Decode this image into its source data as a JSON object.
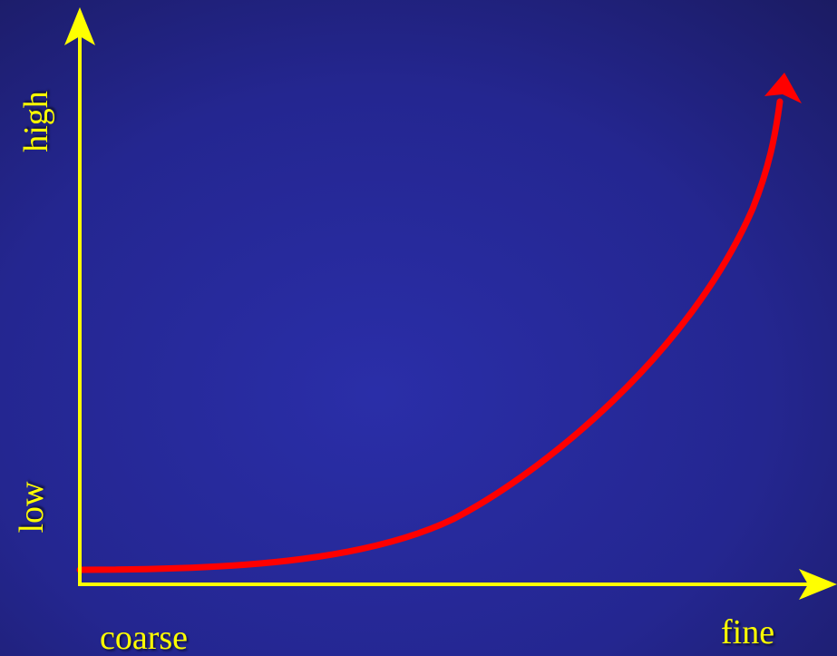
{
  "colors": {
    "background_light": "#2A2EA8",
    "background_dark": "#1A1A5E",
    "axis": "#FFFF00",
    "curve": "#FF0000",
    "label": "#FFFF00"
  },
  "axes": {
    "x_label_start": "coarse",
    "x_label_end": "fine",
    "y_label_start": "low",
    "y_label_end": "high"
  }
}
